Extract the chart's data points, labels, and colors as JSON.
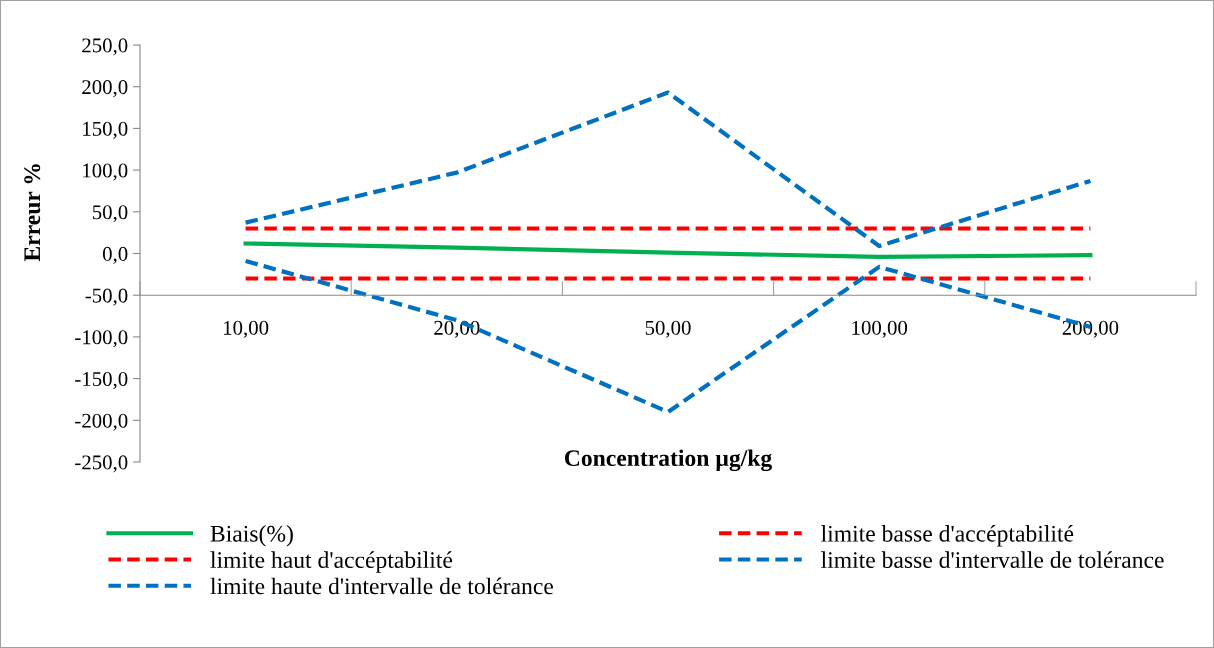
{
  "chart_data": {
    "type": "line",
    "xlabel": "Concentration µg/kg",
    "ylabel": "Erreur %",
    "categories": [
      "10,00",
      "20,00",
      "50,00",
      "100,00",
      "200,00"
    ],
    "series": [
      {
        "name": "Biais(%)",
        "color": "#00b050",
        "line_style": "solid",
        "values": [
          12,
          7,
          1,
          -4,
          -2
        ]
      },
      {
        "name": "limite basse d'accéptabilité",
        "color": "#ff0000",
        "line_style": "dashed",
        "values": [
          -30,
          -30,
          -30,
          -30,
          -30
        ]
      },
      {
        "name": "limite haut d'accéptabilité",
        "color": "#ff0000",
        "line_style": "dashed",
        "values": [
          30,
          30,
          30,
          30,
          30
        ]
      },
      {
        "name": "limite basse d'intervalle de tolérance",
        "color": "#0070c0",
        "line_style": "dashed",
        "values": [
          -9,
          -80,
          -190,
          -16,
          -88
        ]
      },
      {
        "name": "limite haute d'intervalle de tolérance",
        "color": "#0070c0",
        "line_style": "dashed",
        "values": [
          37,
          97,
          193,
          9,
          87
        ]
      }
    ],
    "ylim": [
      -250,
      250
    ],
    "yticks": [
      {
        "value": -250,
        "label": "-250,0"
      },
      {
        "value": -200,
        "label": "-200,0"
      },
      {
        "value": -150,
        "label": "-150,0"
      },
      {
        "value": -100,
        "label": "-100,0"
      },
      {
        "value": -50,
        "label": "-50,0"
      },
      {
        "value": 0,
        "label": "0,0"
      },
      {
        "value": 50,
        "label": "50,0"
      },
      {
        "value": 100,
        "label": "100,0"
      },
      {
        "value": 150,
        "label": "150,0"
      },
      {
        "value": 200,
        "label": "200,0"
      },
      {
        "value": 250,
        "label": "250,0"
      }
    ],
    "grid": false,
    "legend": "bottom",
    "marker": "none"
  }
}
